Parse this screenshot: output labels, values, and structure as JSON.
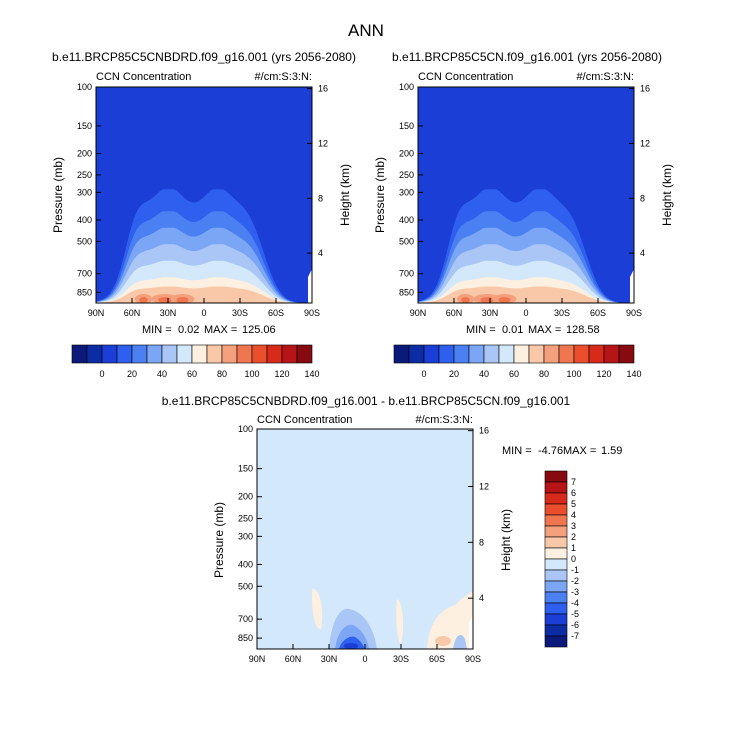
{
  "figure": {
    "title": "ANN"
  },
  "colors": {
    "background_field": "#1b3ed6",
    "diff_background": "#d3e8fb",
    "scale_abs": [
      "#0b1a7a",
      "#0b2ca5",
      "#1b3ed6",
      "#2e5fee",
      "#4a80f2",
      "#7ba5f5",
      "#a9c6f7",
      "#d3e8fb",
      "#fdf0e0",
      "#f9c8a8",
      "#f5a07c",
      "#f07650",
      "#ea4e2c",
      "#d72a1a",
      "#b61416",
      "#870a10"
    ],
    "scale_diff": [
      "#0b1a7a",
      "#0b2ca5",
      "#1b3ed6",
      "#2e5fee",
      "#4a80f2",
      "#7ba5f5",
      "#a9c6f7",
      "#d3e8fb",
      "#fdf0e0",
      "#f9c8a8",
      "#f5a07c",
      "#f07650",
      "#ea4e2c",
      "#d72a1a",
      "#b61416",
      "#870a10"
    ]
  },
  "chart_data": [
    {
      "type": "heatmap",
      "title": "b.e11.BRCP85C5CNBDRD.f09_g16.001 (yrs 2056-2080)",
      "variable": "CCN Concentration",
      "units": "#/cm:S:3:N:",
      "ylabel": "Pressure (mb)",
      "y2label": "Height (km)",
      "x_ticks": [
        "90N",
        "60N",
        "30N",
        "0",
        "30S",
        "60S",
        "90S"
      ],
      "y_ticks": [
        100,
        150,
        200,
        250,
        300,
        400,
        500,
        700,
        850
      ],
      "y2_ticks": [
        4,
        8,
        12,
        16
      ],
      "min_label": "MIN =",
      "min": "0.02",
      "max_label": "MAX =",
      "max": "125.06",
      "colorbar_labels": [
        0,
        20,
        40,
        60,
        80,
        100,
        120,
        140
      ]
    },
    {
      "type": "heatmap",
      "title": "b.e11.BRCP85C5CN.f09_g16.001 (yrs 2056-2080)",
      "variable": "CCN Concentration",
      "units": "#/cm:S:3:N:",
      "ylabel": "Pressure (mb)",
      "y2label": "Height (km)",
      "x_ticks": [
        "90N",
        "60N",
        "30N",
        "0",
        "30S",
        "60S",
        "90S"
      ],
      "y_ticks": [
        100,
        150,
        200,
        250,
        300,
        400,
        500,
        700,
        850
      ],
      "y2_ticks": [
        4,
        8,
        12,
        16
      ],
      "min_label": "MIN =",
      "min": "0.01",
      "max_label": "MAX =",
      "max": "128.58",
      "colorbar_labels": [
        0,
        20,
        40,
        60,
        80,
        100,
        120,
        140
      ]
    },
    {
      "type": "heatmap",
      "title": "b.e11.BRCP85C5CNBDRD.f09_g16.001 - b.e11.BRCP85C5CN.f09_g16.001",
      "variable": "CCN Concentration",
      "units": "#/cm:S:3:N:",
      "ylabel": "Pressure (mb)",
      "y2label": "Height (km)",
      "x_ticks": [
        "90N",
        "60N",
        "30N",
        "0",
        "30S",
        "60S",
        "90S"
      ],
      "y_ticks": [
        100,
        150,
        200,
        250,
        300,
        400,
        500,
        700,
        850
      ],
      "y2_ticks": [
        4,
        8,
        12,
        16
      ],
      "min_label": "MIN =",
      "min": "-4.76",
      "max_label": "MAX =",
      "max": "1.59",
      "colorbar_labels": [
        7,
        6,
        5,
        4,
        3,
        2,
        1,
        0,
        -1,
        -2,
        -3,
        -4,
        -5,
        -6,
        -7
      ]
    }
  ]
}
